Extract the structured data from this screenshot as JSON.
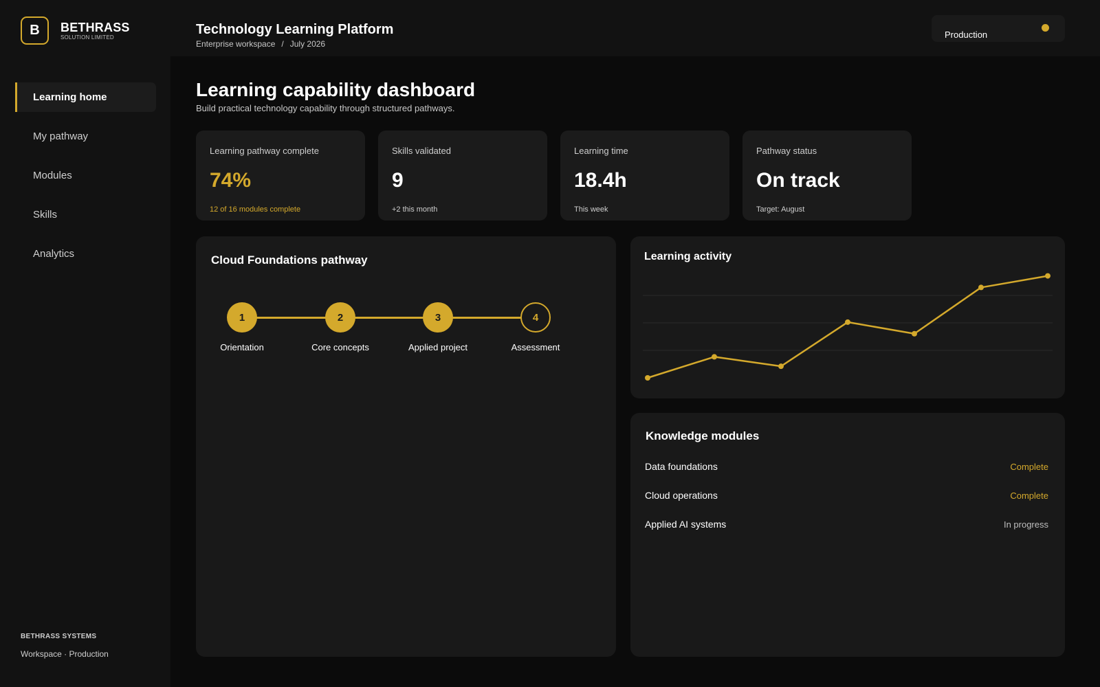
{
  "brand": {
    "logo_letter": "B",
    "name": "BETHRASS",
    "sub": "SOLUTION LIMITED"
  },
  "nav": {
    "items": [
      {
        "label": "Learning home",
        "active": true
      },
      {
        "label": "My pathway"
      },
      {
        "label": "Modules"
      },
      {
        "label": "Skills"
      },
      {
        "label": "Analytics"
      }
    ]
  },
  "sidebar_footer": {
    "org": "BETHRASS SYSTEMS",
    "env": "Workspace · Production"
  },
  "header": {
    "title": "Technology Learning Platform",
    "workspace": "Enterprise workspace",
    "separator": "/",
    "period": "July 2026",
    "environment_label": "Production",
    "environment_color": "#d4a92c"
  },
  "page": {
    "title": "Learning capability dashboard",
    "subtitle": "Build practical technology capability through structured pathways."
  },
  "stats": [
    {
      "label": "Learning pathway complete",
      "value": "74%",
      "note": "12 of 16 modules complete"
    },
    {
      "label": "Skills validated",
      "value": "9",
      "note": "+2 this month"
    },
    {
      "label": "Learning time",
      "value": "18.4h",
      "note": "This week"
    },
    {
      "label": "Pathway status",
      "value": "On track",
      "note": "Target: August"
    }
  ],
  "pathway": {
    "title": "Cloud Foundations pathway",
    "steps": [
      {
        "number": "1",
        "label": "Orientation",
        "done": true
      },
      {
        "number": "2",
        "label": "Core concepts",
        "done": true
      },
      {
        "number": "3",
        "label": "Applied project",
        "done": true
      },
      {
        "number": "4",
        "label": "Assessment",
        "done": false
      }
    ]
  },
  "activity": {
    "title": "Learning activity"
  },
  "chart_data": {
    "type": "line",
    "title": "Learning activity",
    "x": [
      1,
      2,
      3,
      4,
      5,
      6,
      7
    ],
    "series": [
      {
        "values": [
          0,
          0.2,
          0.11,
          0.53,
          0.42,
          0.86,
          0.97
        ]
      }
    ],
    "ylim": [
      0,
      1
    ],
    "grid": true,
    "color": "#d4a92c"
  },
  "modules": {
    "title": "Knowledge modules",
    "items": [
      {
        "name": "Data foundations",
        "status": "Complete",
        "state": "complete"
      },
      {
        "name": "Cloud operations",
        "status": "Complete",
        "state": "complete"
      },
      {
        "name": "Applied AI systems",
        "status": "In progress",
        "state": "progress"
      }
    ]
  },
  "colors": {
    "accent": "#d4a92c",
    "background": "#0b0b0b",
    "panel": "#191919"
  }
}
